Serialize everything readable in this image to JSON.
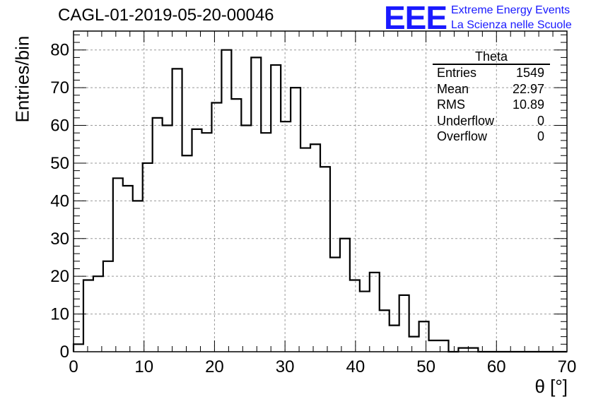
{
  "title": "CAGL-01-2019-05-20-00046",
  "logo": {
    "mark": "EEE",
    "line1": "Extreme Energy Events",
    "line2": "La Scienza nelle Scuole",
    "color": "#1a1aff"
  },
  "stats_box": {
    "title": "Theta",
    "rows": [
      {
        "label": "Entries",
        "value": "1549"
      },
      {
        "label": "Mean",
        "value": "22.97"
      },
      {
        "label": "RMS",
        "value": "10.89"
      },
      {
        "label": "Underflow",
        "value": "0"
      },
      {
        "label": "Overflow",
        "value": "0"
      }
    ]
  },
  "chart_data": {
    "type": "bar",
    "style": "step-histogram",
    "title": "CAGL-01-2019-05-20-00046",
    "xlabel": "θ [°]",
    "ylabel": "Entries/bin",
    "xlim": [
      0,
      70
    ],
    "ylim": [
      0,
      85
    ],
    "xticks": [
      0,
      10,
      20,
      30,
      40,
      50,
      60,
      70
    ],
    "yticks": [
      0,
      10,
      20,
      30,
      40,
      50,
      60,
      70,
      80
    ],
    "grid": true,
    "bin_width": 1.4,
    "bin_edges_start": 0,
    "values": [
      2,
      19,
      20,
      24,
      46,
      44,
      40,
      50,
      62,
      60,
      75,
      52,
      59,
      58,
      66,
      80,
      67,
      60,
      78,
      58,
      76,
      61,
      70,
      54,
      55,
      49,
      25,
      30,
      19,
      16,
      21,
      11,
      7,
      15,
      4,
      8,
      3,
      3,
      0,
      1,
      1,
      0,
      0,
      0,
      0,
      0,
      0,
      0,
      0,
      0
    ],
    "line_color": "#000000",
    "grid_color": "#999999"
  }
}
